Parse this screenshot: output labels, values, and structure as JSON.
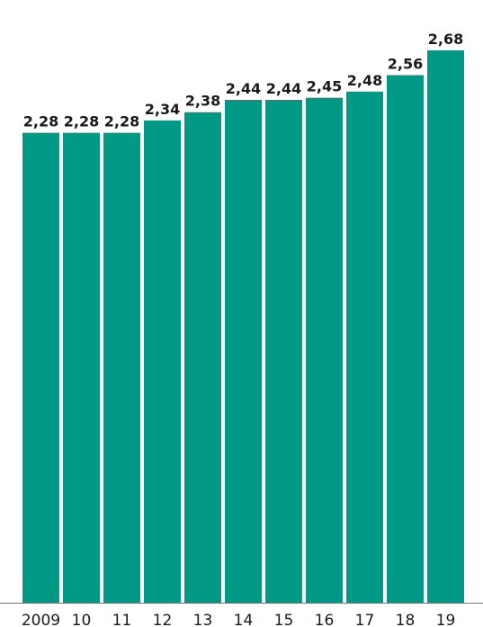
{
  "chart_data": {
    "type": "bar",
    "title": "",
    "xlabel": "",
    "ylabel": "",
    "categories": [
      "2009",
      "10",
      "11",
      "12",
      "13",
      "14",
      "15",
      "16",
      "17",
      "18",
      "19"
    ],
    "values": [
      2.28,
      2.28,
      2.28,
      2.34,
      2.38,
      2.44,
      2.44,
      2.45,
      2.48,
      2.56,
      2.68
    ],
    "value_labels": [
      "2,28",
      "2,28",
      "2,28",
      "2,34",
      "2,38",
      "2,44",
      "2,44",
      "2,45",
      "2,48",
      "2,56",
      "2,68"
    ],
    "ylim": [
      0,
      2.68
    ],
    "grid": false,
    "legend": "none",
    "colors": {
      "bar": "#009985",
      "text": "#1a1a1a",
      "axis": "#777777"
    }
  }
}
